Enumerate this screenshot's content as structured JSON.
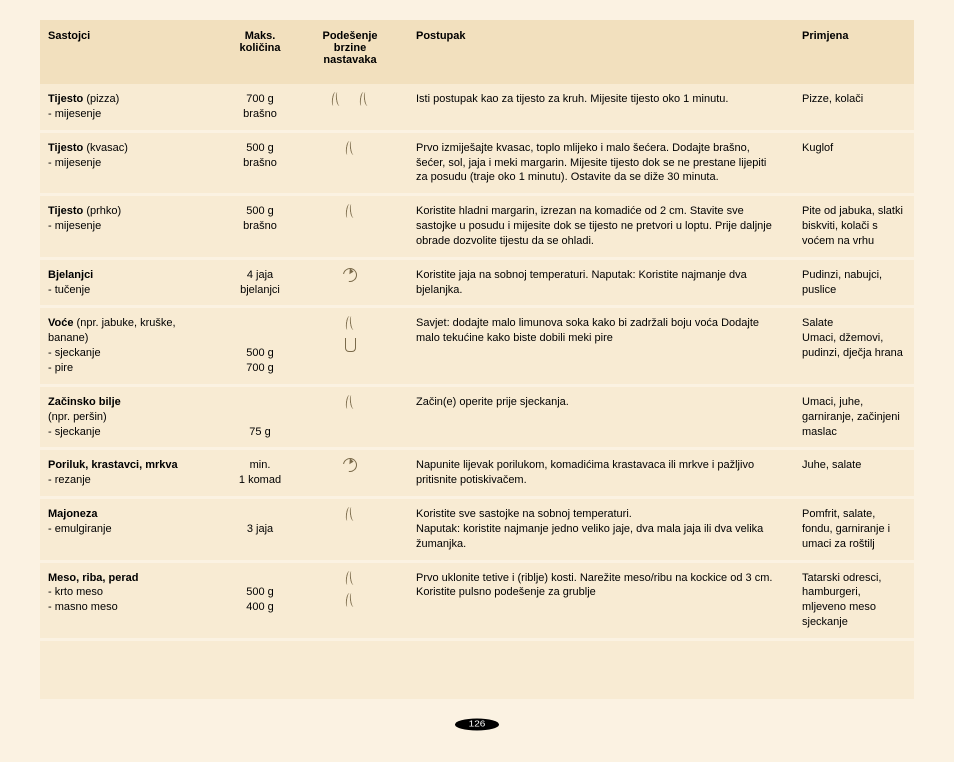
{
  "headers": {
    "ingredients": "Sastojci",
    "maxAmount": "Maks. količina",
    "speed": "Podešenje brzine nastavaka",
    "procedure": "Postupak",
    "application": "Primjena"
  },
  "rows": [
    {
      "title": "Tijesto",
      "title_suffix": " (pizza)",
      "subs": [
        "- mijesenje"
      ],
      "amount_lines": [
        "700 g",
        "brašno"
      ],
      "speed_icons": [
        {
          "type": "steam"
        },
        {
          "type": "steam"
        }
      ],
      "speed_layout": "horiz",
      "procedure": "Isti postupak kao za tijesto za kruh. Mijesite tijesto oko 1 minutu.",
      "application": "Pizze, kolači"
    },
    {
      "title": "Tijesto",
      "title_suffix": " (kvasac)",
      "subs": [
        "- mijesenje"
      ],
      "amount_lines": [
        "500 g",
        "brašno"
      ],
      "speed_icons": [
        {
          "type": "steam"
        }
      ],
      "speed_layout": "vert",
      "procedure": "Prvo izmiješajte kvasac, toplo mlijeko i malo šećera. Dodajte brašno, šećer, sol, jaja i meki margarin. Mijesite tijesto dok se ne prestane lijepiti za posudu (traje oko 1 minutu). Ostavite da se diže 30 minuta.",
      "application": "Kuglof"
    },
    {
      "title": "Tijesto",
      "title_suffix": " (prhko)",
      "subs": [
        "- mijesenje"
      ],
      "amount_lines": [
        "500 g",
        "brašno"
      ],
      "speed_icons": [
        {
          "type": "steam"
        }
      ],
      "speed_layout": "vert",
      "procedure": "Koristite hladni margarin, izrezan na komadiće od 2 cm. Stavite sve sastojke u posudu i mijesite dok se tijesto ne pretvori u loptu. Prije daljnje obrade dozvolite tijestu da se ohladi.",
      "application": "Pite od jabuka, slatki biskviti, kolači s voćem na vrhu"
    },
    {
      "title": "Bjelanjci",
      "title_suffix": "",
      "subs": [
        "- tučenje"
      ],
      "amount_lines": [
        "4 jaja",
        "bjelanjci"
      ],
      "speed_icons": [
        {
          "type": "pulse"
        }
      ],
      "speed_layout": "vert",
      "procedure": "Koristite jaja na sobnoj temperaturi. Naputak: Koristite najmanje dva bjelanjka.",
      "application": "Pudinzi, nabujci, puslice"
    },
    {
      "title": "Voće",
      "title_suffix": " (npr. jabuke, kruške, banane)",
      "subs": [
        "- sjeckanje",
        "- pire"
      ],
      "amount_lines": [
        "",
        "",
        "500 g",
        "700 g"
      ],
      "speed_icons": [
        {
          "type": "steam"
        },
        {
          "type": "cup"
        }
      ],
      "speed_layout": "vert",
      "procedure": "Savjet: dodajte malo limunova soka kako bi zadržali boju voća Dodajte malo tekućine kako biste dobili meki pire",
      "application": "Salate\nUmaci, džemovi, pudinzi, dječja hrana"
    },
    {
      "title": "Začinsko bilje",
      "title_suffix": "",
      "subs": [
        "(npr. peršin)",
        "- sjeckanje"
      ],
      "amount_lines": [
        "",
        "",
        "75 g"
      ],
      "speed_icons": [
        {
          "type": "steam"
        }
      ],
      "speed_layout": "vert",
      "procedure": "Začin(e) operite prije sjeckanja.",
      "application": "Umaci, juhe, garniranje, začinjeni maslac"
    },
    {
      "title": "Poriluk, krastavci, mrkva",
      "title_suffix": "",
      "subs": [
        "- rezanje"
      ],
      "amount_lines": [
        "min.",
        "1 komad"
      ],
      "speed_icons": [
        {
          "type": "pulse"
        }
      ],
      "speed_layout": "vert",
      "procedure": "Napunite lijevak porilukom, komadićima krastavaca ili mrkve i pažljivo pritisnite potiskivačem.",
      "application": "Juhe, salate"
    },
    {
      "title": "Majoneza",
      "title_suffix": "",
      "subs": [
        "- emulgiranje"
      ],
      "amount_lines": [
        "",
        "3 jaja"
      ],
      "speed_icons": [
        {
          "type": "steam"
        }
      ],
      "speed_layout": "vert",
      "procedure": "Koristite sve sastojke na sobnoj temperaturi.\nNaputak: koristite najmanje jedno veliko jaje, dva mala jaja ili dva velika žumanjka.",
      "application": "Pomfrit, salate, fondu, garniranje i umaci za roštilj"
    },
    {
      "title": "Meso, riba, perad",
      "title_suffix": "",
      "subs": [
        "- krto meso",
        "- masno meso"
      ],
      "amount_lines": [
        "",
        "500 g",
        "400 g"
      ],
      "speed_icons": [
        {
          "type": "steam"
        },
        {
          "type": "steam"
        }
      ],
      "speed_layout": "vert",
      "procedure": "Prvo uklonite tetive i (riblje) kosti. Narežite meso/ribu na kockice od 3 cm. Koristite pulsno podešenje za grublje",
      "application": "Tatarski odresci, hamburgeri, mljeveno meso sjeckanje"
    }
  ],
  "page_number": "126"
}
